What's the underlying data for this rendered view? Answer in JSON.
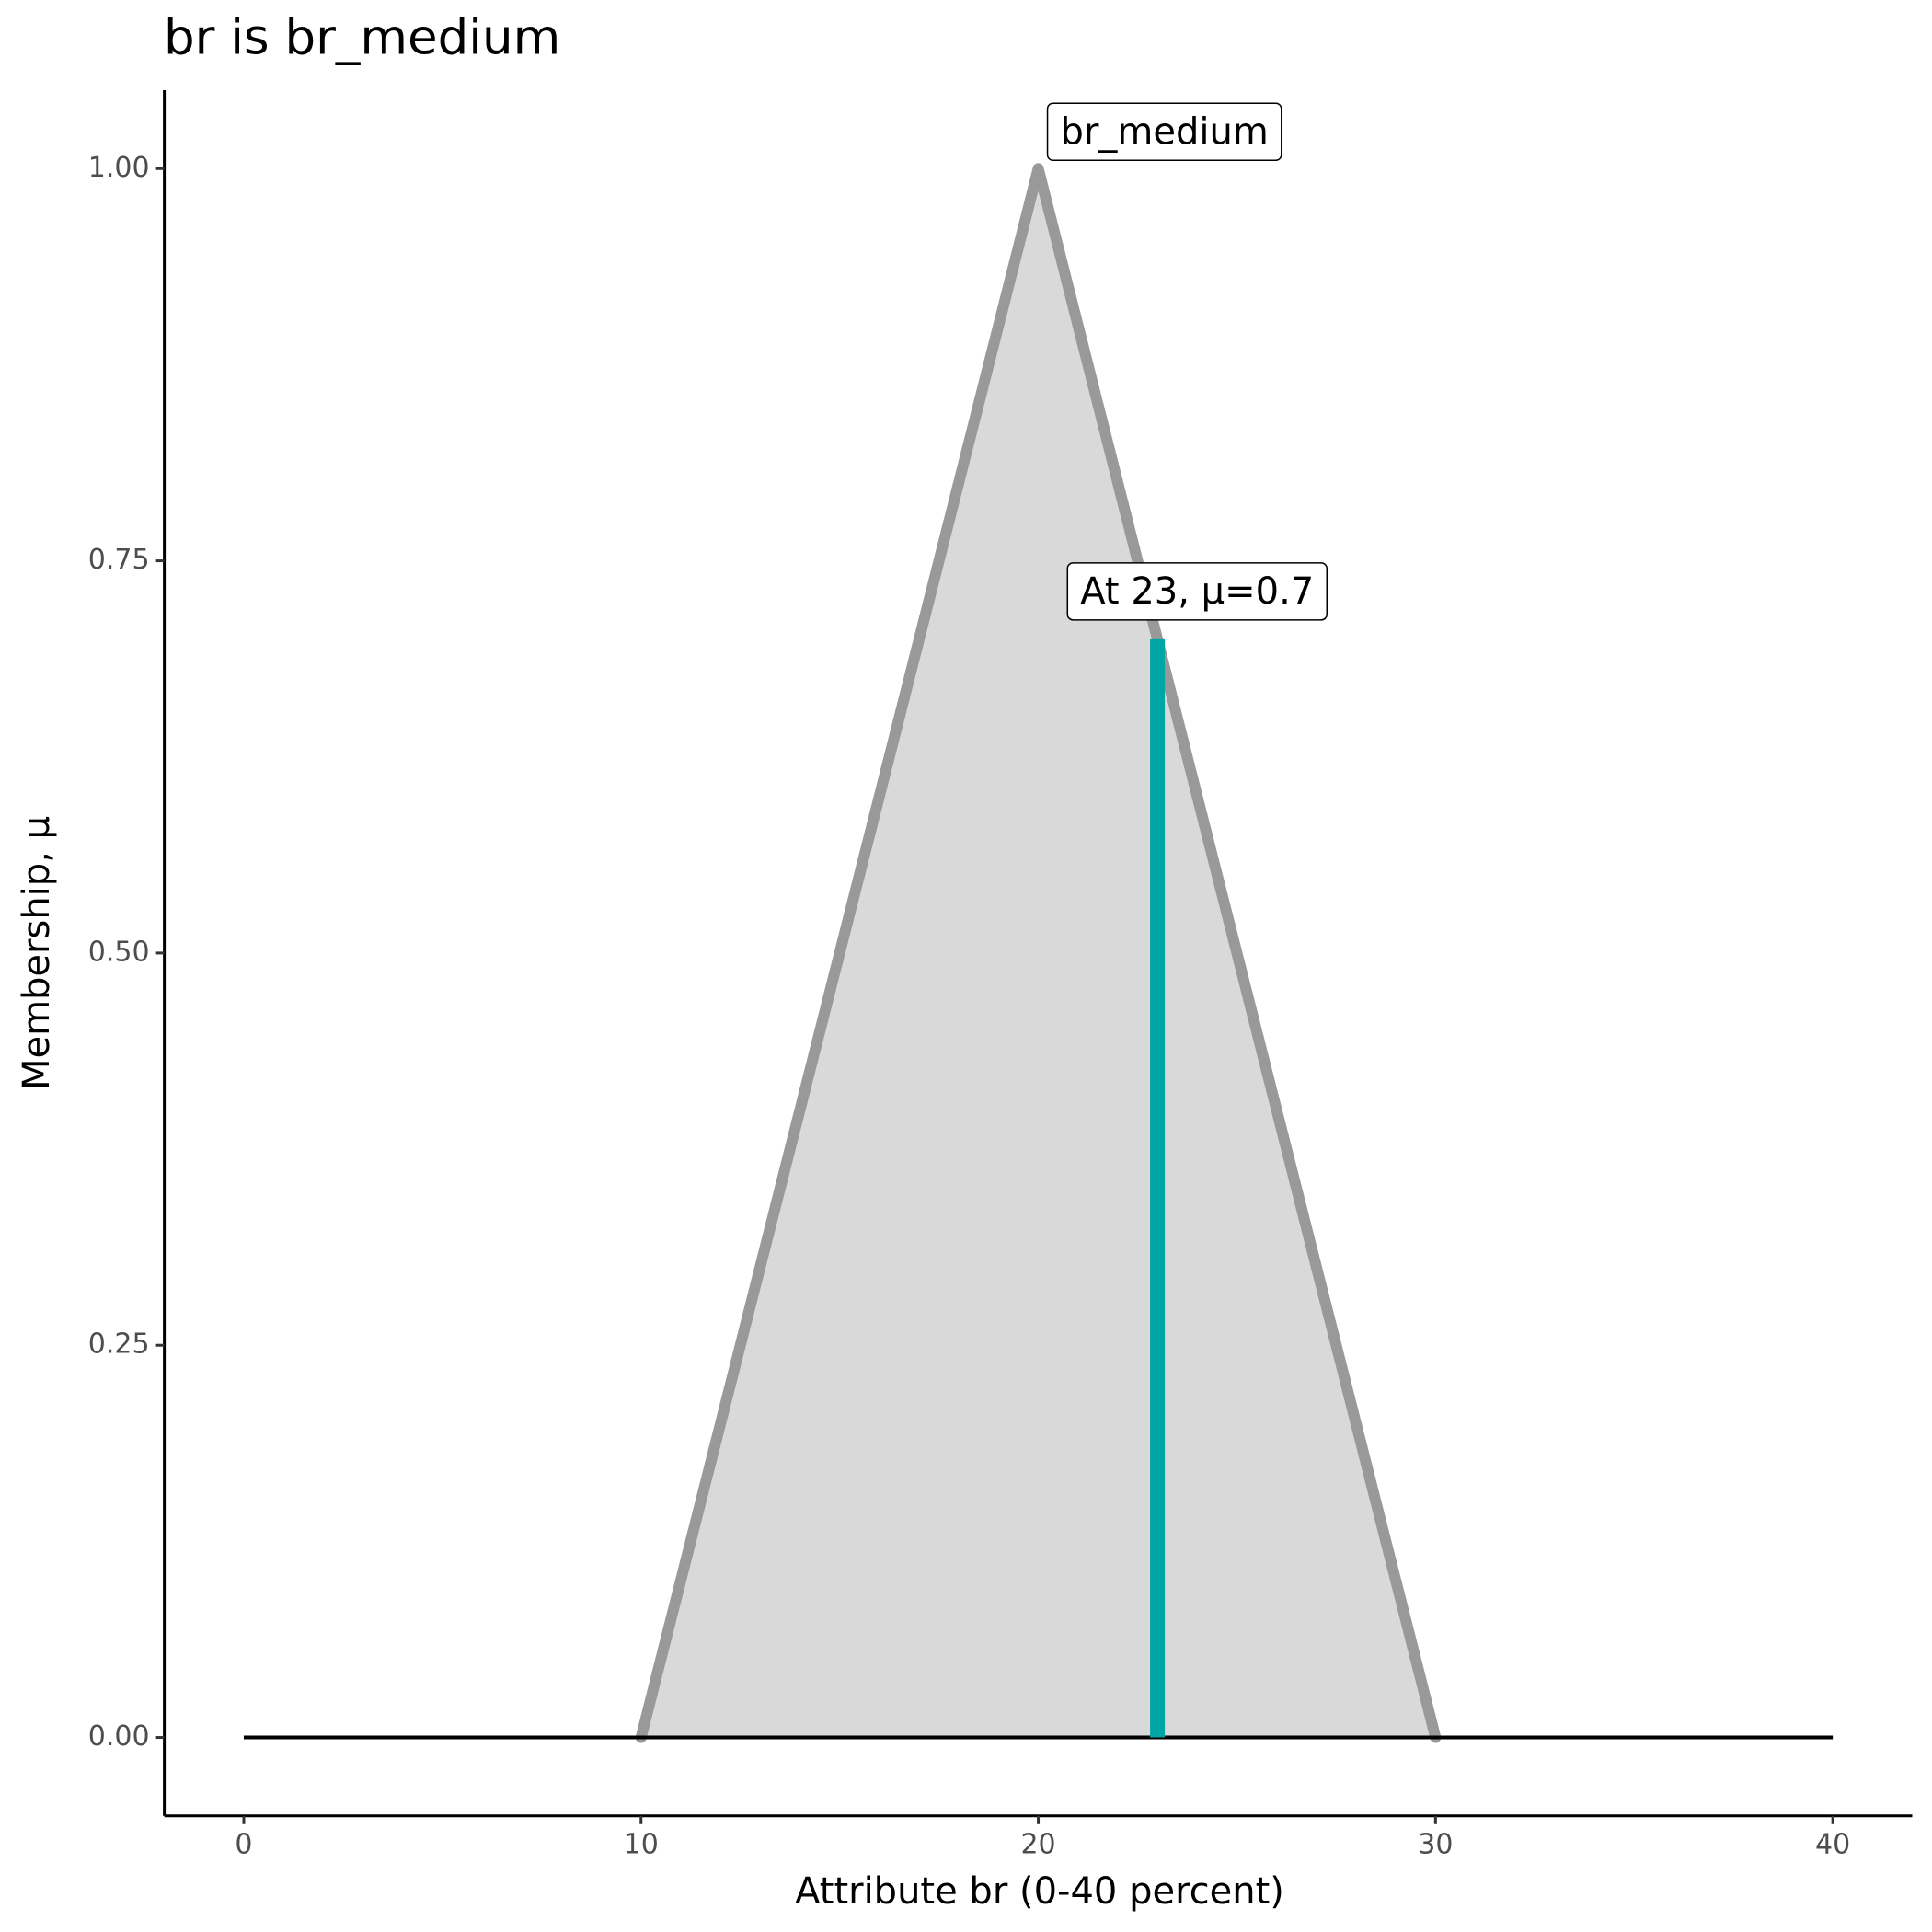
{
  "chart_data": {
    "type": "line",
    "title": "br is br_medium",
    "x_label": "Attribute br (0-40 percent)",
    "y_label": "Membership, μ",
    "xlim": [
      -2,
      42
    ],
    "ylim": [
      -0.05,
      1.05
    ],
    "xticks": [
      0,
      10,
      20,
      30,
      40
    ],
    "yticks": [
      {
        "value": 0,
        "label": "0.00"
      },
      {
        "value": 0.25,
        "label": "0.25"
      },
      {
        "value": 0.5,
        "label": "0.50"
      },
      {
        "value": 0.75,
        "label": "0.75"
      },
      {
        "value": 1,
        "label": "1.00"
      }
    ],
    "series": [
      {
        "name": "br_medium",
        "color": "#999999",
        "fill": "#d9d9d9",
        "x": [
          10,
          20,
          30
        ],
        "values": [
          0,
          1,
          0
        ]
      }
    ],
    "baseline": {
      "color": "#000000",
      "x": [
        0,
        40
      ],
      "values": [
        0,
        0
      ]
    },
    "marker": {
      "label": "At 23, μ=0.7",
      "color": "#00a5a5",
      "x": 23,
      "value": 0.7
    }
  }
}
